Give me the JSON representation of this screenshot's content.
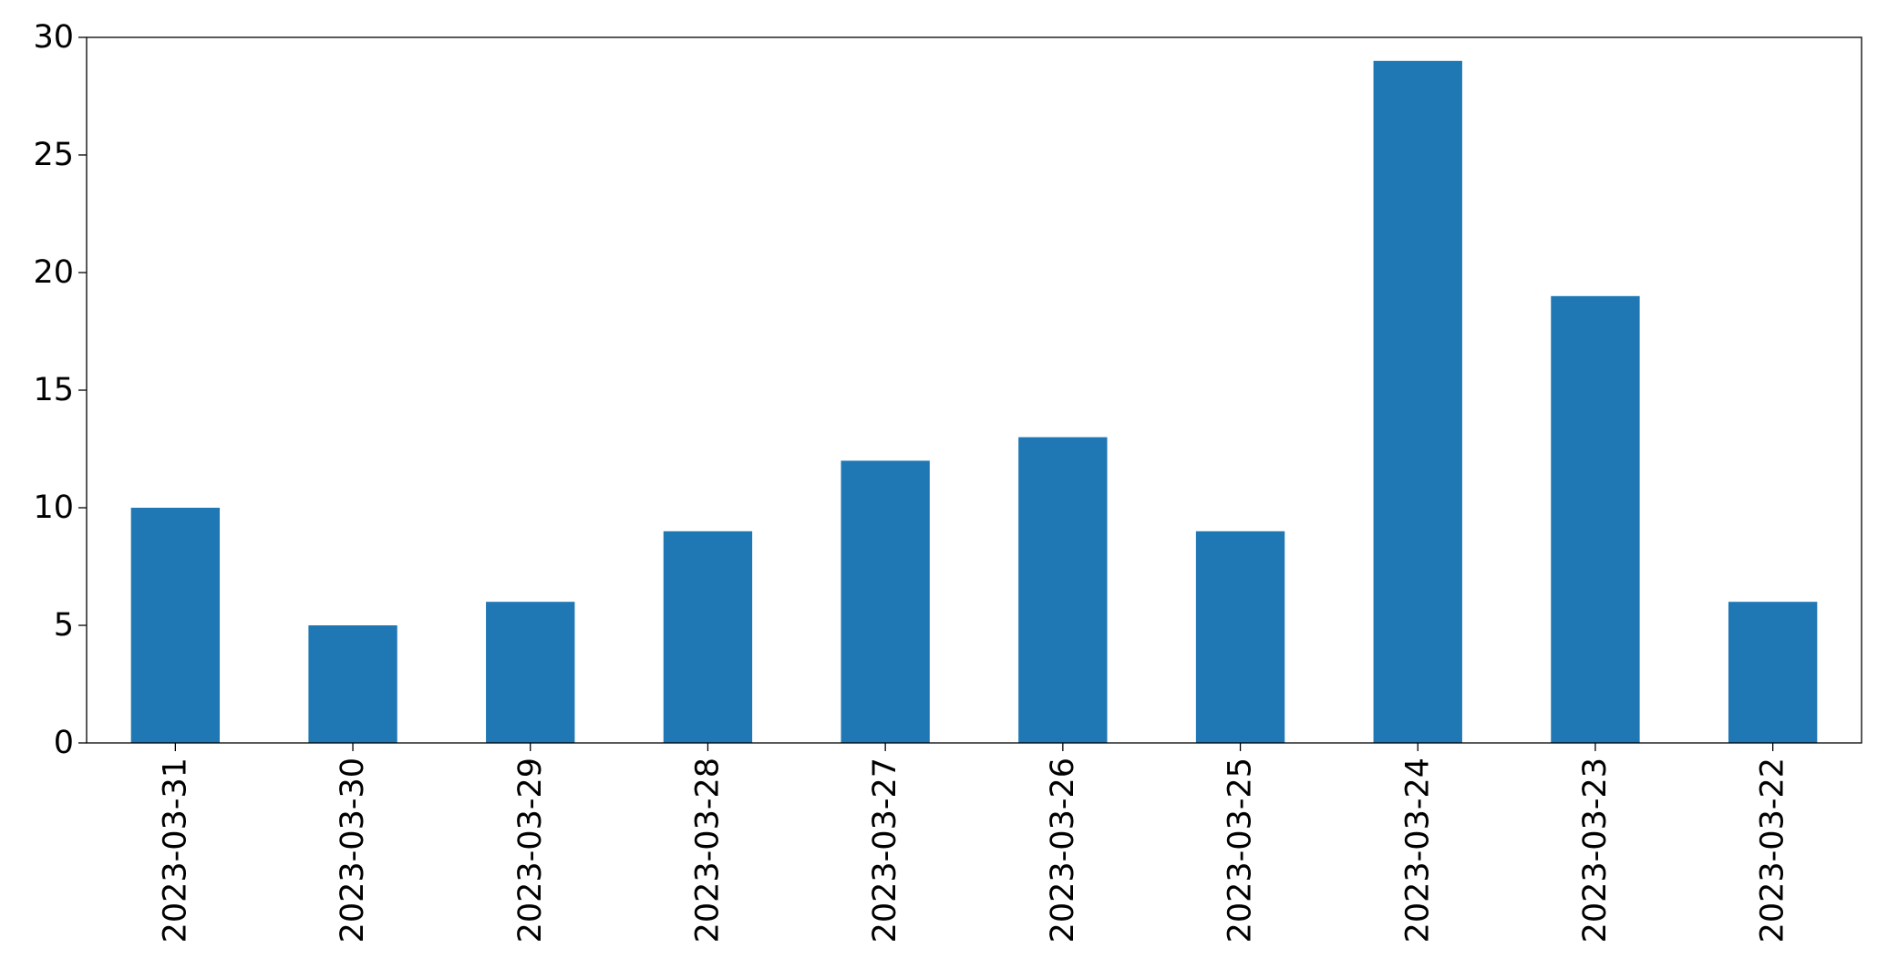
{
  "chart_data": {
    "type": "bar",
    "categories": [
      "2023-03-31",
      "2023-03-30",
      "2023-03-29",
      "2023-03-28",
      "2023-03-27",
      "2023-03-26",
      "2023-03-25",
      "2023-03-24",
      "2023-03-23",
      "2023-03-22"
    ],
    "values": [
      10,
      5,
      6,
      9,
      12,
      13,
      9,
      29,
      19,
      6
    ],
    "title": "",
    "xlabel": "",
    "ylabel": "",
    "ylim": [
      0,
      30
    ],
    "yticks": [
      0,
      5,
      10,
      15,
      20,
      25,
      30
    ],
    "grid": false,
    "legend": "none",
    "bar_color": "#1f77b4"
  }
}
